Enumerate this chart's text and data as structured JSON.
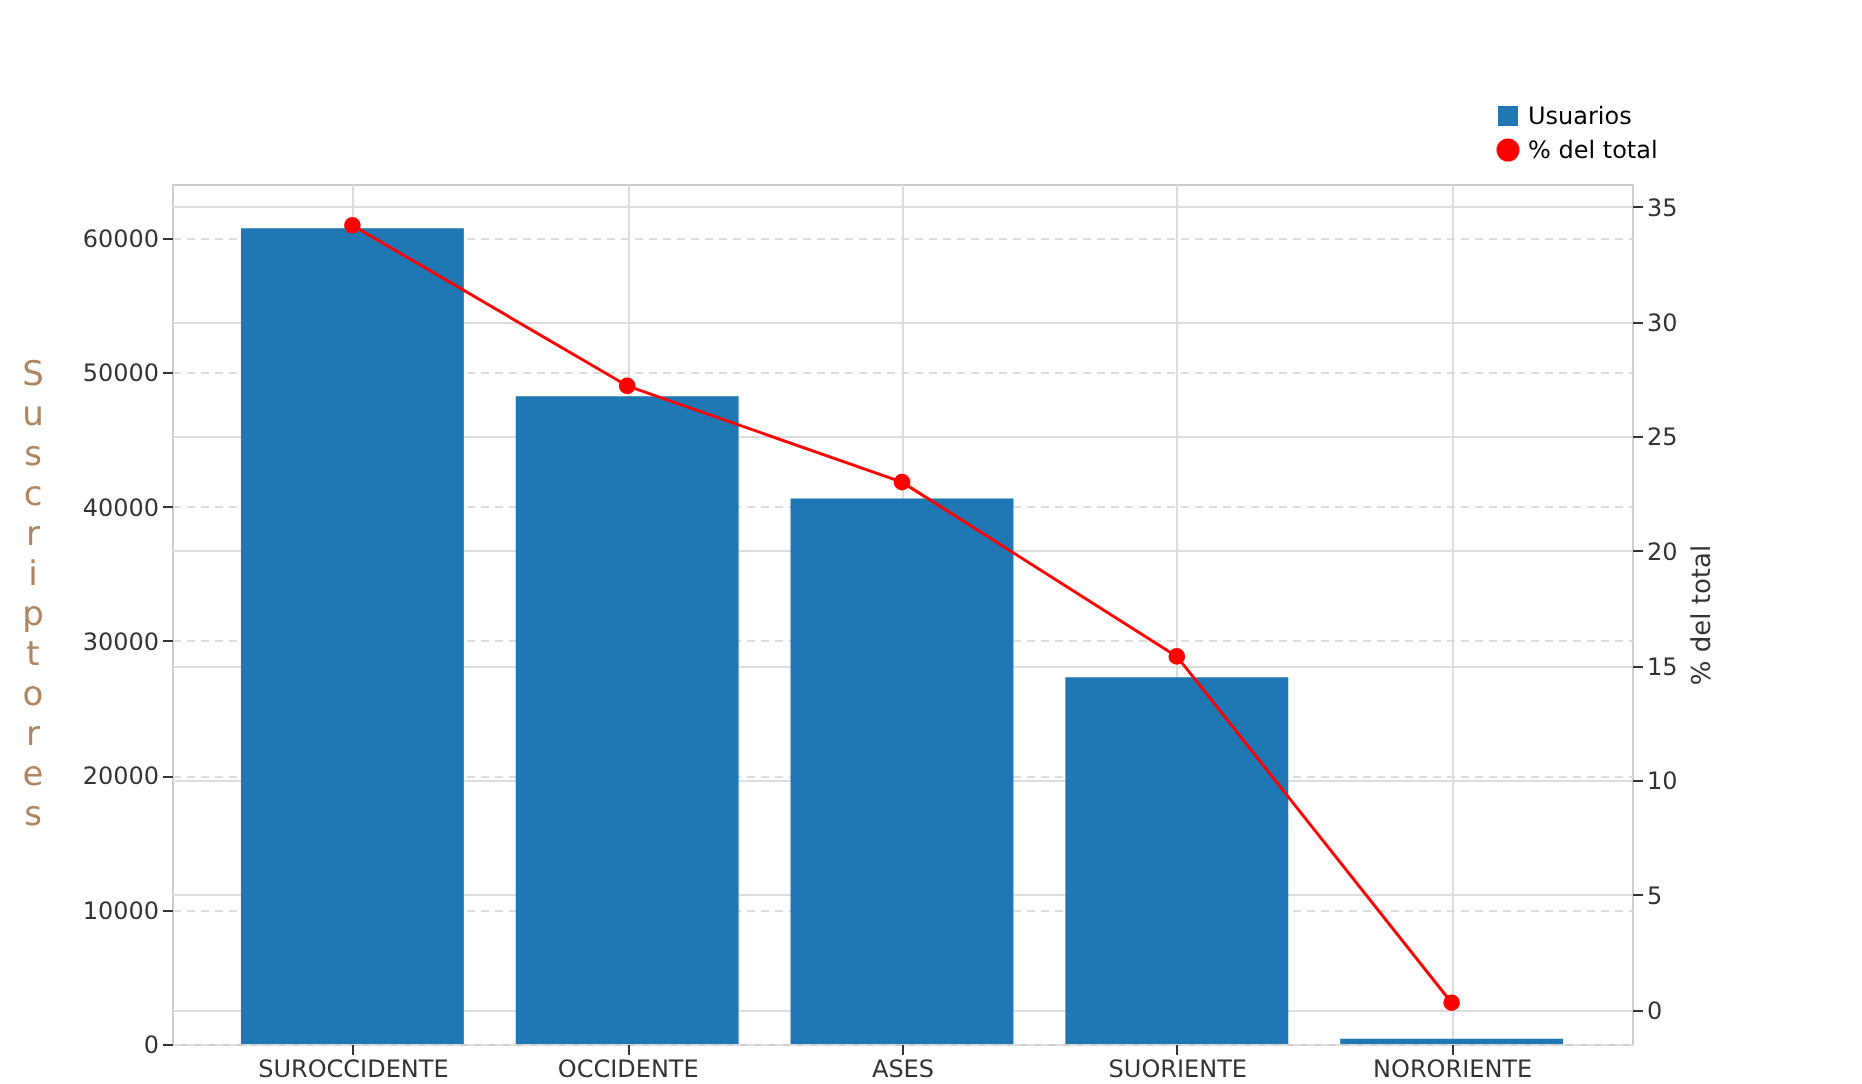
{
  "chart_data": {
    "type": "bar",
    "categories": [
      "SUROCCIDENTE",
      "OCCIDENTE",
      "ASES",
      "SUORIENTE",
      "NORORIENTE"
    ],
    "ylabel": "Suscriptores",
    "y2label": "% del total",
    "series": [
      {
        "name": "Usuarios",
        "color": "#1f77b4",
        "values": [
          60700,
          48200,
          40600,
          27300,
          400
        ]
      },
      {
        "name": "% del total",
        "type": "line",
        "axis": "y2",
        "color": "#ff0000",
        "values": [
          34.2,
          27.2,
          23.0,
          15.4,
          0.3
        ]
      }
    ],
    "ylim": [
      0,
      64000
    ],
    "yticks": [
      0,
      10000,
      20000,
      30000,
      40000,
      50000,
      60000
    ],
    "y2lim": [
      -1.5,
      36
    ],
    "y2ticks": [
      0,
      5,
      10,
      15,
      20,
      25,
      30,
      35
    ],
    "grid": true,
    "legend": "top right",
    "marker": "circle",
    "line_style": "solid"
  }
}
